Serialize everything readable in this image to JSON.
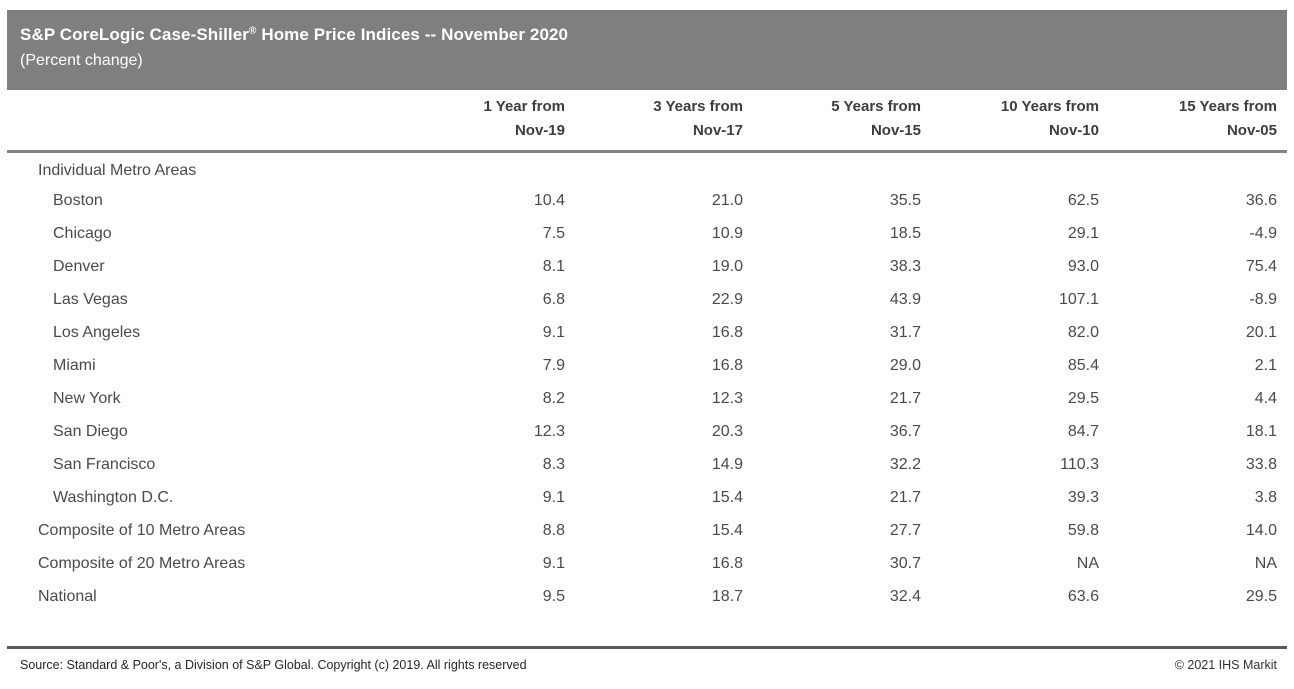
{
  "header": {
    "title_main": "S&P CoreLogic Case-Shiller",
    "title_reg": "®",
    "title_rest": " Home Price Indices -- November 2020",
    "subtitle": "(Percent change)"
  },
  "table": {
    "columns": [
      {
        "line1": "1 Year from",
        "line2": "Nov-19"
      },
      {
        "line1": "3 Years from",
        "line2": "Nov-17"
      },
      {
        "line1": "5 Years from",
        "line2": "Nov-15"
      },
      {
        "line1": "10 Years from",
        "line2": "Nov-10"
      },
      {
        "line1": "15 Years from",
        "line2": "Nov-05"
      }
    ],
    "rows": [
      {
        "label": "Individual Metro Areas",
        "indent": 0,
        "values": [
          "",
          "",
          "",
          "",
          ""
        ]
      },
      {
        "label": "Boston",
        "indent": 1,
        "values": [
          "10.4",
          "21.0",
          "35.5",
          "62.5",
          "36.6"
        ]
      },
      {
        "label": "Chicago",
        "indent": 1,
        "values": [
          "7.5",
          "10.9",
          "18.5",
          "29.1",
          "-4.9"
        ]
      },
      {
        "label": "Denver",
        "indent": 1,
        "values": [
          "8.1",
          "19.0",
          "38.3",
          "93.0",
          "75.4"
        ]
      },
      {
        "label": "Las Vegas",
        "indent": 1,
        "values": [
          "6.8",
          "22.9",
          "43.9",
          "107.1",
          "-8.9"
        ]
      },
      {
        "label": "Los Angeles",
        "indent": 1,
        "values": [
          "9.1",
          "16.8",
          "31.7",
          "82.0",
          "20.1"
        ]
      },
      {
        "label": "Miami",
        "indent": 1,
        "values": [
          "7.9",
          "16.8",
          "29.0",
          "85.4",
          "2.1"
        ]
      },
      {
        "label": "New York",
        "indent": 1,
        "values": [
          "8.2",
          "12.3",
          "21.7",
          "29.5",
          "4.4"
        ]
      },
      {
        "label": "San Diego",
        "indent": 1,
        "values": [
          "12.3",
          "20.3",
          "36.7",
          "84.7",
          "18.1"
        ]
      },
      {
        "label": "San Francisco",
        "indent": 1,
        "values": [
          "8.3",
          "14.9",
          "32.2",
          "110.3",
          "33.8"
        ]
      },
      {
        "label": "Washington D.C.",
        "indent": 1,
        "values": [
          "9.1",
          "15.4",
          "21.7",
          "39.3",
          "3.8"
        ]
      },
      {
        "label": "Composite of 10 Metro Areas",
        "indent": 0,
        "values": [
          "8.8",
          "15.4",
          "27.7",
          "59.8",
          "14.0"
        ]
      },
      {
        "label": "Composite of 20 Metro Areas",
        "indent": 0,
        "values": [
          "9.1",
          "16.8",
          "30.7",
          "NA",
          "NA"
        ]
      },
      {
        "label": "National",
        "indent": 0,
        "values": [
          "9.5",
          "18.7",
          "32.4",
          "63.6",
          "29.5"
        ]
      }
    ]
  },
  "footer": {
    "source": "Source: Standard & Poor's, a Division of S&P Global. Copyright (c) 2019. All rights reserved",
    "copyright": "© 2021 IHS Markit"
  },
  "colors": {
    "header_bar": "#7f7f7f",
    "header_rule": "#828282",
    "footer_rule": "#595959",
    "header_text": "#3d3d3d",
    "body_text": "#4a4a4a",
    "title_text": "#ffffff"
  },
  "chart_data": {
    "type": "table",
    "title": "S&P CoreLogic Case-Shiller® Home Price Indices -- November 2020",
    "subtitle": "(Percent change)",
    "unit": "percent change",
    "section_header": "Individual Metro Areas",
    "categories": [
      "Boston",
      "Chicago",
      "Denver",
      "Las Vegas",
      "Los Angeles",
      "Miami",
      "New York",
      "San Diego",
      "San Francisco",
      "Washington D.C.",
      "Composite of 10 Metro Areas",
      "Composite of 20 Metro Areas",
      "National"
    ],
    "series": [
      {
        "name": "1 Year from Nov-19",
        "values": [
          10.4,
          7.5,
          8.1,
          6.8,
          9.1,
          7.9,
          8.2,
          12.3,
          8.3,
          9.1,
          8.8,
          9.1,
          9.5
        ]
      },
      {
        "name": "3 Years from Nov-17",
        "values": [
          21.0,
          10.9,
          19.0,
          22.9,
          16.8,
          16.8,
          12.3,
          20.3,
          14.9,
          15.4,
          15.4,
          16.8,
          18.7
        ]
      },
      {
        "name": "5 Years from Nov-15",
        "values": [
          35.5,
          18.5,
          38.3,
          43.9,
          31.7,
          29.0,
          21.7,
          36.7,
          32.2,
          21.7,
          27.7,
          30.7,
          32.4
        ]
      },
      {
        "name": "10 Years from Nov-10",
        "values": [
          62.5,
          29.1,
          93.0,
          107.1,
          82.0,
          85.4,
          29.5,
          84.7,
          110.3,
          39.3,
          59.8,
          "NA",
          63.6
        ]
      },
      {
        "name": "15 Years from Nov-05",
        "values": [
          36.6,
          -4.9,
          75.4,
          -8.9,
          20.1,
          2.1,
          4.4,
          18.1,
          33.8,
          3.8,
          14.0,
          "NA",
          29.5
        ]
      }
    ],
    "source": "Source: Standard & Poor's, a Division of S&P Global. Copyright (c) 2019. All rights reserved",
    "copyright": "© 2021 IHS Markit"
  }
}
